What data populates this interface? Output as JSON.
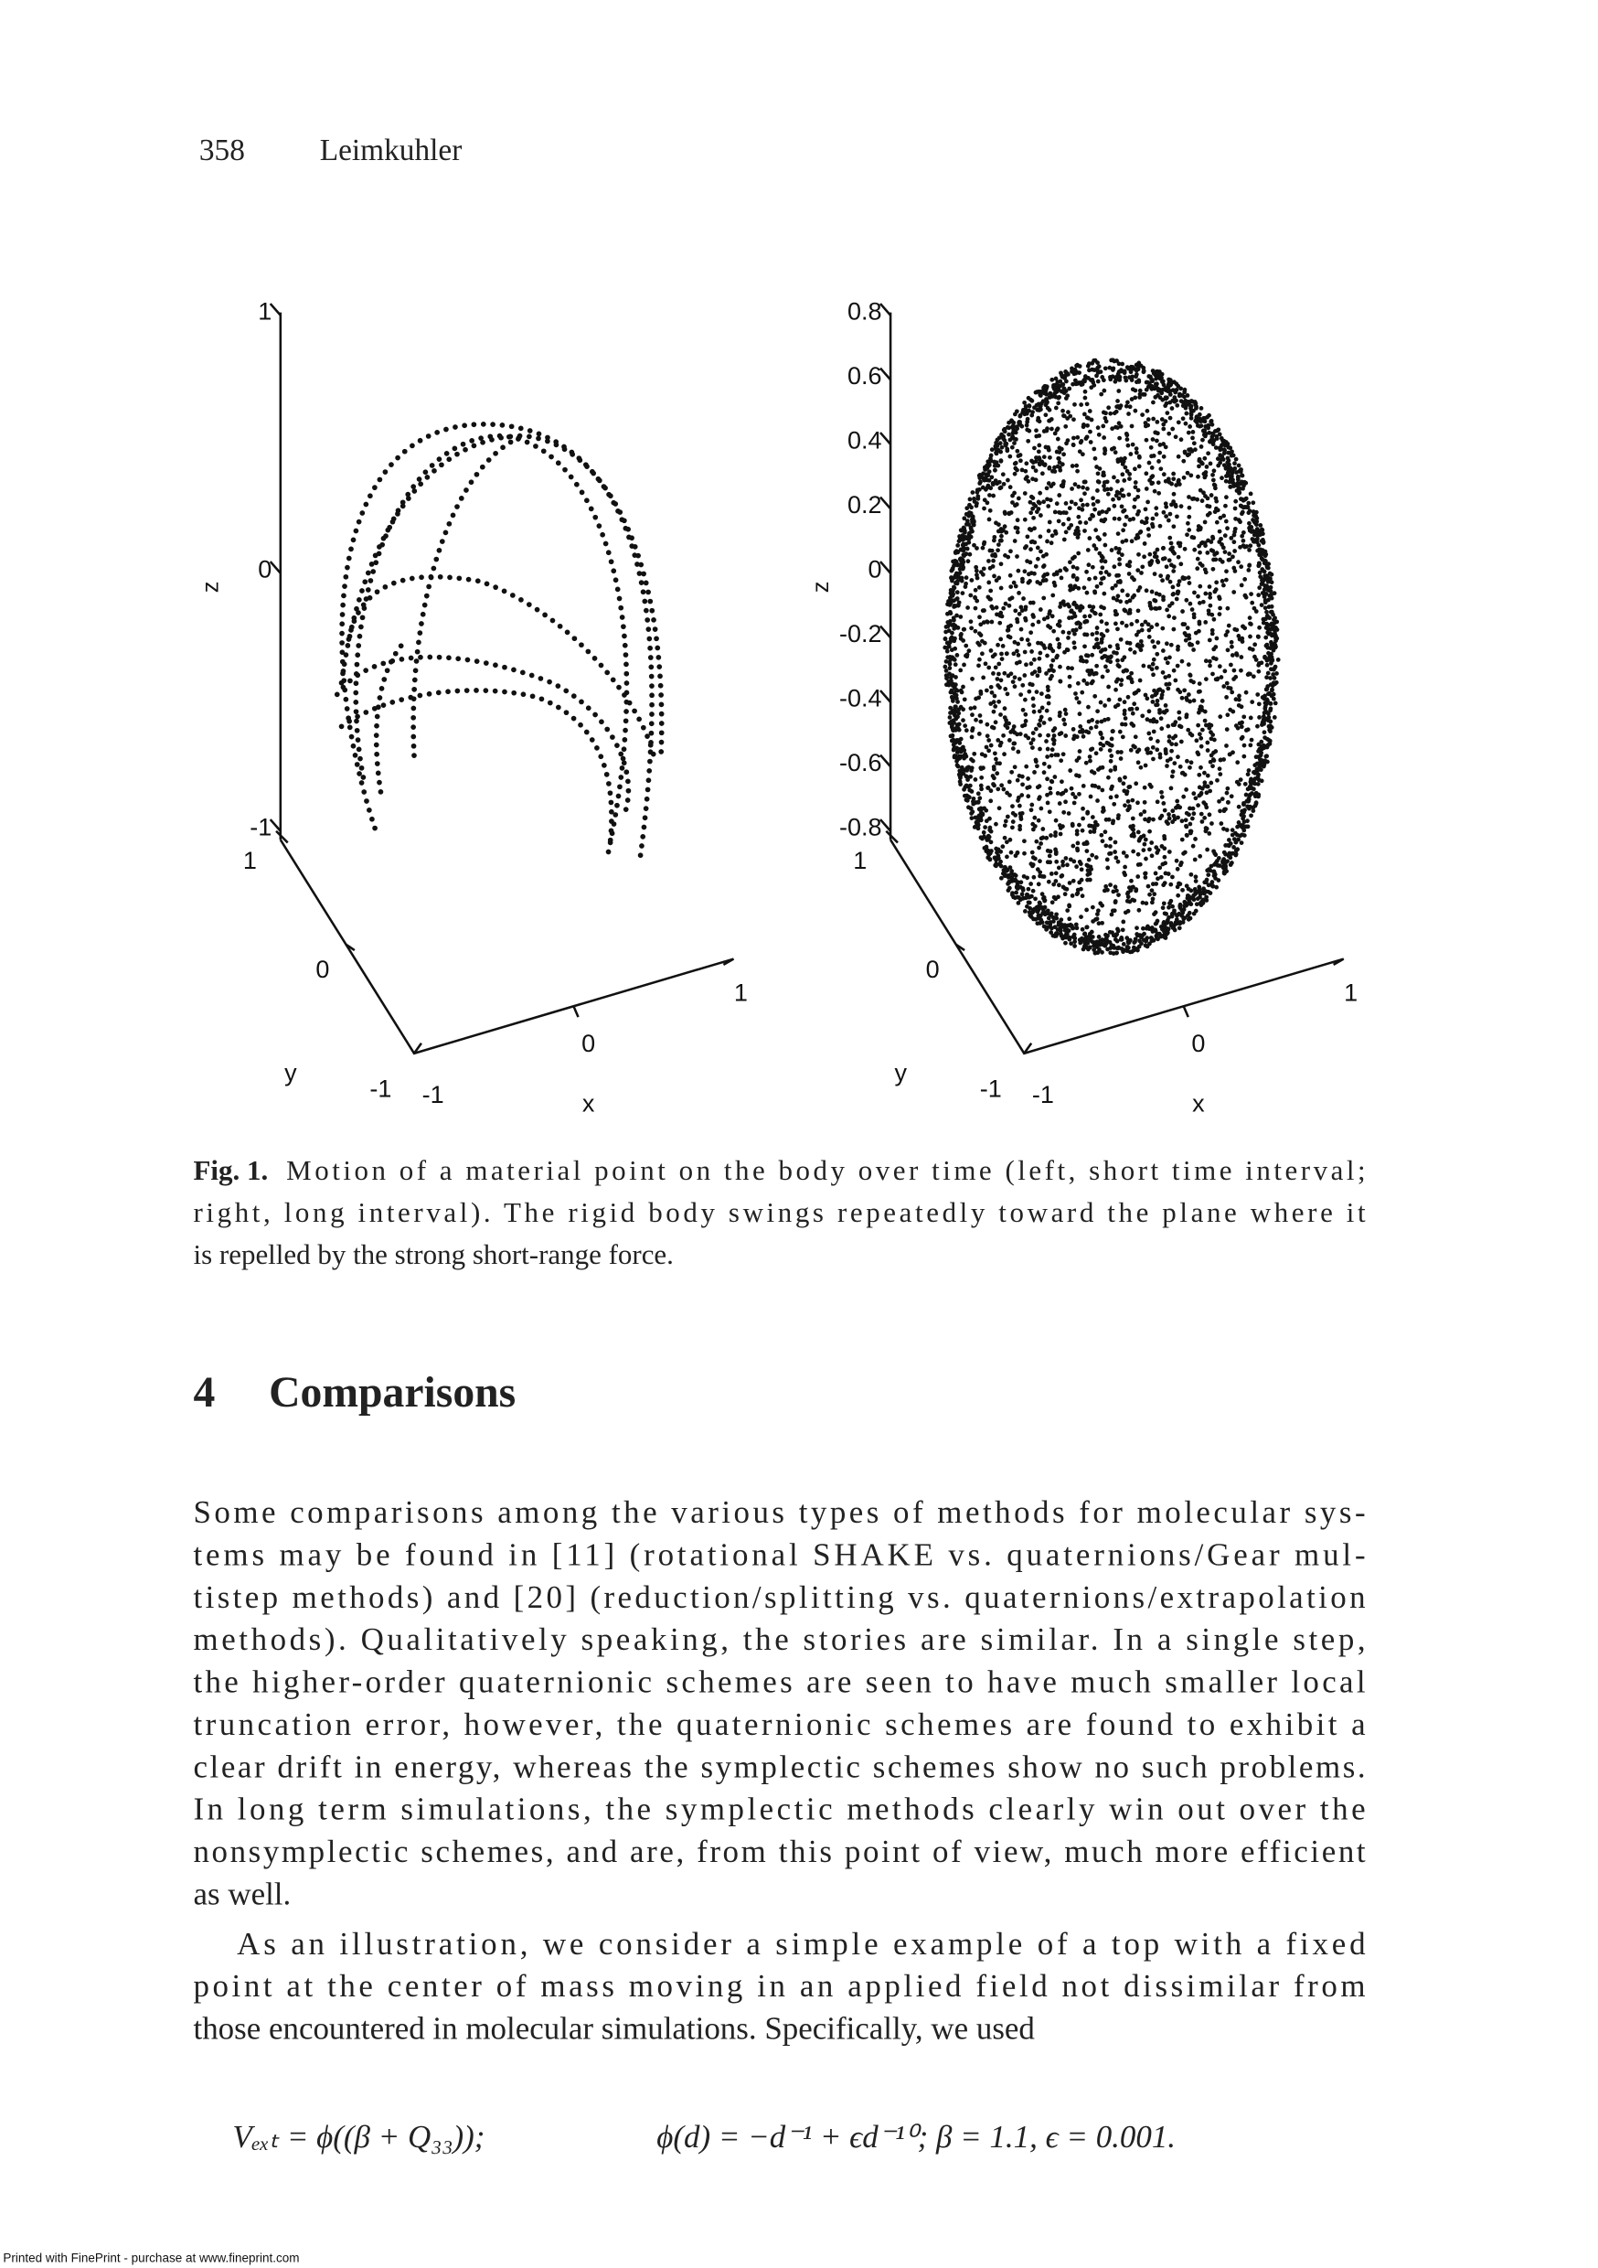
{
  "header": {
    "page_number": "358",
    "author": "Leimkuhler"
  },
  "figures": [
    {
      "z_label": "z",
      "z_ticks": [
        "1",
        "0",
        "-1"
      ],
      "y_label": "y",
      "y_ticks": [
        "1",
        "0",
        "-1"
      ],
      "x_label": "x",
      "x_ticks": [
        "-1",
        "0",
        "1"
      ]
    },
    {
      "z_label": "z",
      "z_ticks": [
        "0.8",
        "0.6",
        "0.4",
        "0.2",
        "0",
        "-0.2",
        "-0.4",
        "-0.6",
        "-0.8"
      ],
      "y_label": "y",
      "y_ticks": [
        "1",
        "0",
        "-1"
      ],
      "x_label": "x",
      "x_ticks": [
        "-1",
        "0",
        "1"
      ]
    }
  ],
  "caption": {
    "label": "Fig. 1.",
    "lines": [
      "Motion of a material point on the body over time (left, short time interval;",
      "right, long interval). The rigid body swings repeatedly toward the plane where it",
      "is repelled by the strong short-range force."
    ]
  },
  "section": {
    "number": "4",
    "title": "Comparisons"
  },
  "paragraphs": [
    [
      "Some comparisons among the various types of methods for molecular sys-",
      "tems may be found in [11] (rotational SHAKE vs. quaternions/Gear mul-",
      "tistep methods) and [20] (reduction/splitting vs. quaternions/extrapolation",
      "methods). Qualitatively speaking, the stories are similar. In a single step,",
      "the higher-order quaternionic schemes are seen to have much smaller local",
      "truncation error, however, the quaternionic schemes are found to exhibit a",
      "clear drift in energy, whereas the symplectic schemes show no such problems.",
      "In long term simulations, the symplectic methods clearly win out over the",
      "nonsymplectic schemes, and are, from this point of view, much more efficient",
      "as well."
    ],
    [
      "As an illustration, we consider a simple example of a top with a fixed",
      "point at the center of mass moving in an applied field not dissimilar from",
      "those encountered in molecular simulations. Specifically, we used"
    ]
  ],
  "equation": {
    "left": "Vₑₓₜ = ϕ((β + Q₃₃));",
    "right": "ϕ(d) = −d⁻¹ + ϵd⁻¹⁰; β = 1.1,   ϵ = 0.001."
  },
  "footer": "Printed with FinePrint - purchase at www.fineprint.com"
}
